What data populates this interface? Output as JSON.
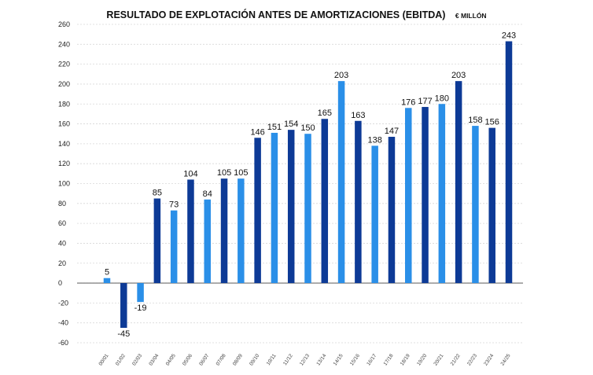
{
  "chart_data": {
    "type": "bar",
    "title": "RESULTADO DE EXPLOTACIÓN ANTES DE AMORTIZACIONES (EBITDA)",
    "unit": "€ MILLÓN",
    "xlabel": "",
    "ylabel": "",
    "ylim": [
      -60,
      260
    ],
    "yticks": [
      260,
      240,
      220,
      200,
      180,
      160,
      140,
      120,
      100,
      80,
      60,
      40,
      20,
      0,
      -20,
      -40,
      -60
    ],
    "ytick_labels": [
      "260",
      "240",
      "220",
      "200",
      "180",
      "160",
      "140",
      "120",
      "100",
      "80",
      "60",
      "40",
      "20",
      "0",
      "-20",
      "-40",
      "-60"
    ],
    "grid": true,
    "categories": [
      "00/01",
      "01/02",
      "02/03",
      "03/04",
      "04/05",
      "05/06",
      "06/07",
      "07/08",
      "08/09",
      "09/10",
      "10/11",
      "11/12",
      "12/13",
      "13/14",
      "14/15",
      "15/16",
      "16/17",
      "17/18",
      "18/19",
      "19/20",
      "20/21",
      "21/22",
      "22/23",
      "23/24",
      "24/25"
    ],
    "values": [
      5,
      -45,
      -19,
      85,
      73,
      104,
      84,
      105,
      105,
      146,
      151,
      154,
      150,
      165,
      203,
      163,
      138,
      147,
      176,
      177,
      180,
      203,
      158,
      156,
      243
    ],
    "data_labels": [
      "5",
      "-45",
      "-19",
      "85",
      "73",
      "104",
      "84",
      "105",
      "105",
      "146",
      "151",
      "154",
      "150",
      "165",
      "203",
      "163",
      "138",
      "147",
      "176",
      "177",
      "180",
      "203",
      "158",
      "156",
      "243"
    ],
    "colors": [
      "#2a8fe8",
      "#0d3a96",
      "#2a8fe8",
      "#0d3a96",
      "#2a8fe8",
      "#0d3a96",
      "#2a8fe8",
      "#0d3a96",
      "#2a8fe8",
      "#0d3a96",
      "#2a8fe8",
      "#0d3a96",
      "#2a8fe8",
      "#0d3a96",
      "#2a8fe8",
      "#0d3a96",
      "#2a8fe8",
      "#0d3a96",
      "#2a8fe8",
      "#0d3a96",
      "#2a8fe8",
      "#0d3a96",
      "#2a8fe8",
      "#0d3a96",
      "#0d3a96"
    ],
    "palette": {
      "dark_blue": "#0d3a96",
      "light_blue": "#2a8fe8",
      "grid": "#d8d8d8",
      "axis": "#444444"
    }
  }
}
